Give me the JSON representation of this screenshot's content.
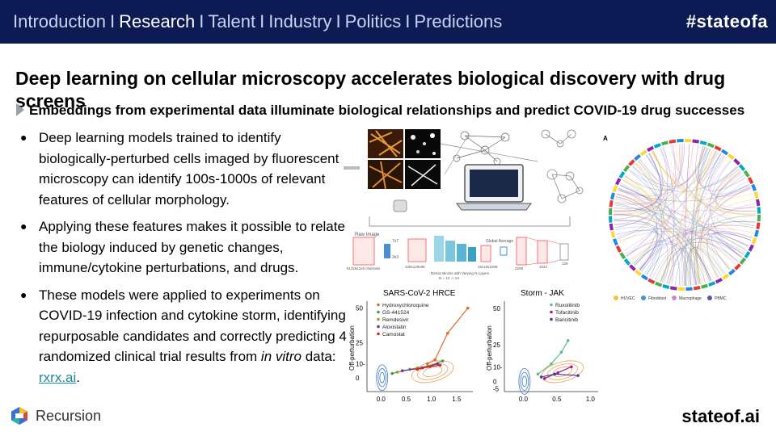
{
  "nav": {
    "items": [
      "Introduction",
      "Research",
      "Talent",
      "Industry",
      "Politics",
      "Predictions"
    ],
    "active": "Research",
    "separator": "I"
  },
  "hashtag": "#stateofa",
  "title": "Deep learning on cellular microscopy accelerates biological discovery with drug screens",
  "subtitle": "Embeddings from experimental data illuminate biological relationships and predict COVID-19 drug successes",
  "bullets": {
    "b1": "Deep learning models trained to identify biologically-perturbed cells imaged by fluorescent microscopy can identify 100s-1000s of relevant features of cellular morphology.",
    "b2": "Applying these features makes it possible to relate the biology induced by genetic changes, immune/cytokine perturbations, and drugs.",
    "b3_pre": "These models were applied to experiments on COVID-19 infection and cytokine storm, identifying repurposable candidates and correctly predicting 4 randomized clinical trial results from ",
    "b3_em": "in vitro",
    "b3_mid": " data: ",
    "b3_link": "rxrx.ai",
    "b3_end": "."
  },
  "footer": {
    "logo_text": "Recursion",
    "site": "stateof.ai"
  },
  "network_fig": {
    "raw_image": "Raw Image",
    "channels": "512x512x6 channels",
    "dims": [
      "7x7",
      "3x3",
      "128x128x96",
      "16x16x2208",
      "2208",
      "1024",
      "128"
    ],
    "dense_label": "Dense Blocks with Varying N Layers",
    "dense_sub": "N = 12 -> 24",
    "global_avg": "Global Average"
  },
  "chord_fig": {
    "panel_label": "A",
    "legend": [
      {
        "name": "HUVEC",
        "color": "#f2c230"
      },
      {
        "name": "Fibroblast",
        "color": "#4a8fd1"
      },
      {
        "name": "Macrophage",
        "color": "#d08ac0"
      },
      {
        "name": "PBMC",
        "color": "#6a4fa0"
      }
    ]
  },
  "chart_data": [
    {
      "type": "scatter",
      "title": "SARS-CoV-2 HRCE",
      "xlabel": "",
      "ylabel": "Off-perturbation",
      "xlim": [
        -0.3,
        1.8
      ],
      "ylim": [
        -10,
        55
      ],
      "xticks": [
        "0.0",
        "0.5",
        "1.0",
        "1.5"
      ],
      "yticks": [
        "0",
        "10-",
        "25",
        "50"
      ],
      "series": [
        {
          "name": "Hydroxychloroquine",
          "color": "#e06a2b",
          "points": [
            [
              0.9,
              10
            ],
            [
              1.05,
              13
            ],
            [
              1.3,
              32
            ],
            [
              1.7,
              50
            ]
          ]
        },
        {
          "name": "GS-441524",
          "color": "#3aa04a",
          "points": [
            [
              0.2,
              3
            ],
            [
              0.55,
              6
            ],
            [
              0.9,
              8
            ],
            [
              1.2,
              12
            ]
          ]
        },
        {
          "name": "Remdesivir",
          "color": "#9c9c20",
          "points": [
            [
              0.3,
              4
            ],
            [
              0.7,
              7
            ],
            [
              1.0,
              9
            ]
          ]
        },
        {
          "name": "Aloxistatin",
          "color": "#7a2ea0",
          "points": [
            [
              0.4,
              5
            ],
            [
              0.8,
              7
            ],
            [
              1.1,
              10
            ]
          ]
        },
        {
          "name": "Camostat",
          "color": "#d62a2a",
          "points": [
            [
              0.7,
              6
            ],
            [
              0.95,
              8
            ],
            [
              1.15,
              9
            ]
          ]
        }
      ]
    },
    {
      "type": "scatter",
      "title": "Storm - JAK",
      "xlabel": "",
      "ylabel": "Off-perturbation",
      "xlim": [
        -0.3,
        1.1
      ],
      "ylim": [
        -7,
        55
      ],
      "xticks": [
        "0.0",
        "0.5",
        "1.0"
      ],
      "yticks": [
        "-5",
        "0",
        "10-",
        "25",
        "50"
      ],
      "series": [
        {
          "name": "Ruxolitinib",
          "color": "#5bbf8a",
          "points": [
            [
              0.2,
              5
            ],
            [
              0.4,
              12
            ],
            [
              0.55,
              20
            ],
            [
              0.65,
              28
            ]
          ]
        },
        {
          "name": "Tofacitinib",
          "color": "#a0207a",
          "points": [
            [
              0.3,
              2
            ],
            [
              0.5,
              6
            ],
            [
              0.7,
              10
            ]
          ]
        },
        {
          "name": "Baricitinib",
          "color": "#4a3a9a",
          "points": [
            [
              0.25,
              3
            ],
            [
              0.45,
              5
            ],
            [
              0.8,
              4
            ]
          ]
        }
      ]
    }
  ]
}
